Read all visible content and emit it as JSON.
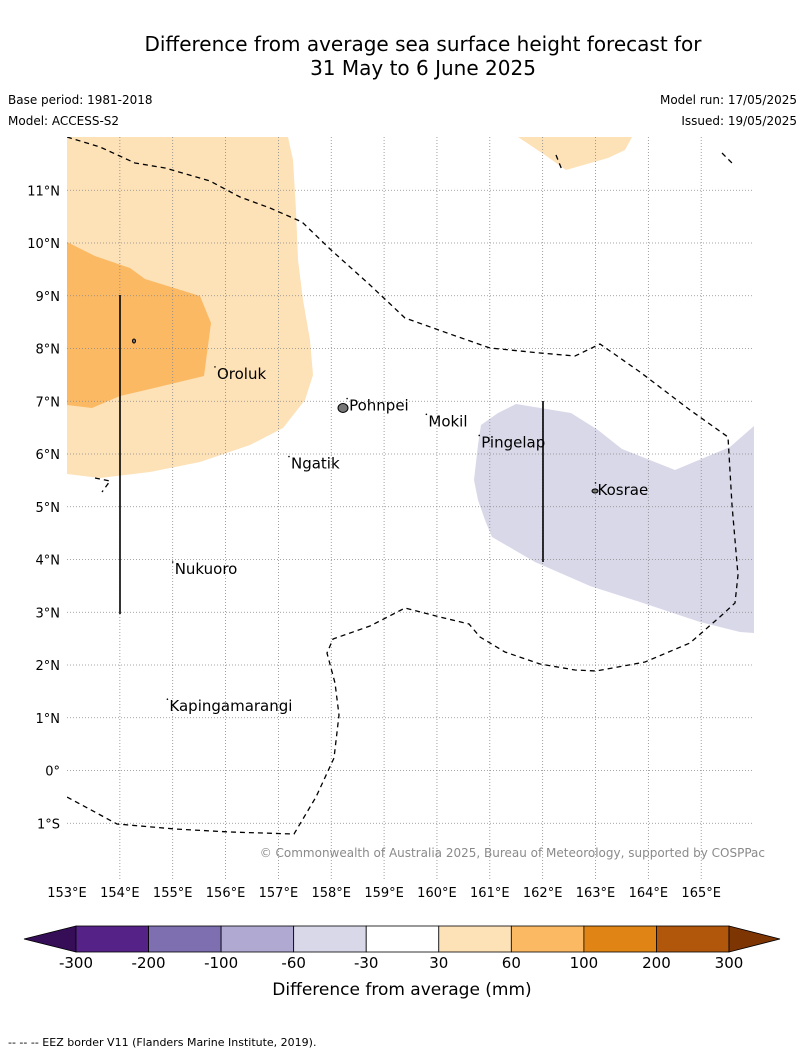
{
  "title": {
    "line1": "Difference from average sea surface height forecast for",
    "line2": "31 May to 6 June 2025"
  },
  "info": {
    "base_period": "Base period: 1981-2018",
    "model": "Model: ACCESS-S2",
    "model_run": "Model run: 17/05/2025",
    "issued": "Issued: 19/05/2025"
  },
  "map": {
    "lon_range": [
      153,
      166
    ],
    "lat_range": [
      -2.1,
      12
    ],
    "lon_ticks": [
      "153°E",
      "154°E",
      "155°E",
      "156°E",
      "157°E",
      "158°E",
      "159°E",
      "160°E",
      "161°E",
      "162°E",
      "163°E",
      "164°E",
      "165°E"
    ],
    "lat_ticks": [
      "11°N",
      "10°N",
      "9°N",
      "8°N",
      "7°N",
      "6°N",
      "5°N",
      "4°N",
      "3°N",
      "2°N",
      "1°N",
      "0°",
      "1°S"
    ],
    "places": [
      {
        "name": "Oroluk",
        "lon": 155.8,
        "lat": 7.5
      },
      {
        "name": "Pohnpei",
        "lon": 158.3,
        "lat": 6.9
      },
      {
        "name": "Mokil",
        "lon": 159.8,
        "lat": 6.6
      },
      {
        "name": "Pingelap",
        "lon": 160.8,
        "lat": 6.2
      },
      {
        "name": "Ngatik",
        "lon": 157.2,
        "lat": 5.8
      },
      {
        "name": "Kosrae",
        "lon": 163.0,
        "lat": 5.3
      },
      {
        "name": "Nukuoro",
        "lon": 155.0,
        "lat": 3.8
      },
      {
        "name": "Kapingamarangi",
        "lon": 154.9,
        "lat": 1.2
      }
    ],
    "copyright": "© Commonwealth of Australia 2025, Bureau of Meteorology, supported by COSPPac",
    "colors": {
      "light_orange": "#fde1b7",
      "mid_orange": "#fbb964",
      "light_purple": "#d8d8e9",
      "grid": "#888888"
    }
  },
  "colorbar": {
    "labels": [
      "-300",
      "-200",
      "-100",
      "-60",
      "-30",
      "30",
      "60",
      "100",
      "200",
      "300"
    ],
    "colors": [
      "#360e57",
      "#552387",
      "#7d6fb0",
      "#b0a9d2",
      "#d8d8e9",
      "#ffffff",
      "#fde1b7",
      "#fbb964",
      "#e08416",
      "#b1570b",
      "#7d3504"
    ],
    "title": "Difference from average (mm)"
  },
  "footnote": "--  --  -- EEZ border V11 (Flanders Marine Institute, 2019)."
}
